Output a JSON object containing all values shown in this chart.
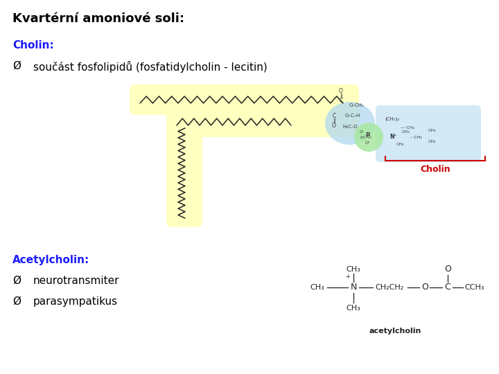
{
  "title": "Kvartérní amoniové soli:",
  "title_fontsize": 13,
  "title_color": "#000000",
  "cholin_label": "Cholin:",
  "cholin_color": "#1a1aff",
  "cholin_fontsize": 11,
  "bullet1_text": "součást fosfolipidů (fosfatidylcholin - lecitin)",
  "acetylcholin_label": "Acetylcholin:",
  "acetylcholin_color": "#1a1aff",
  "acetylcholin_fontsize": 11,
  "bullet2_text": "neurotransmiter",
  "bullet3_text": "parasympatikus",
  "bullet_fontsize": 11,
  "bullet_color": "#000000",
  "bg_color": "#ffffff",
  "yellow_fill": "#FFFFC0",
  "blue_fill": "#B0D8F0",
  "green_fill": "#A8E8A0",
  "red_label": "#CC0000",
  "cholin_red_text": "Cholin",
  "arrow_symbol": "Ø"
}
